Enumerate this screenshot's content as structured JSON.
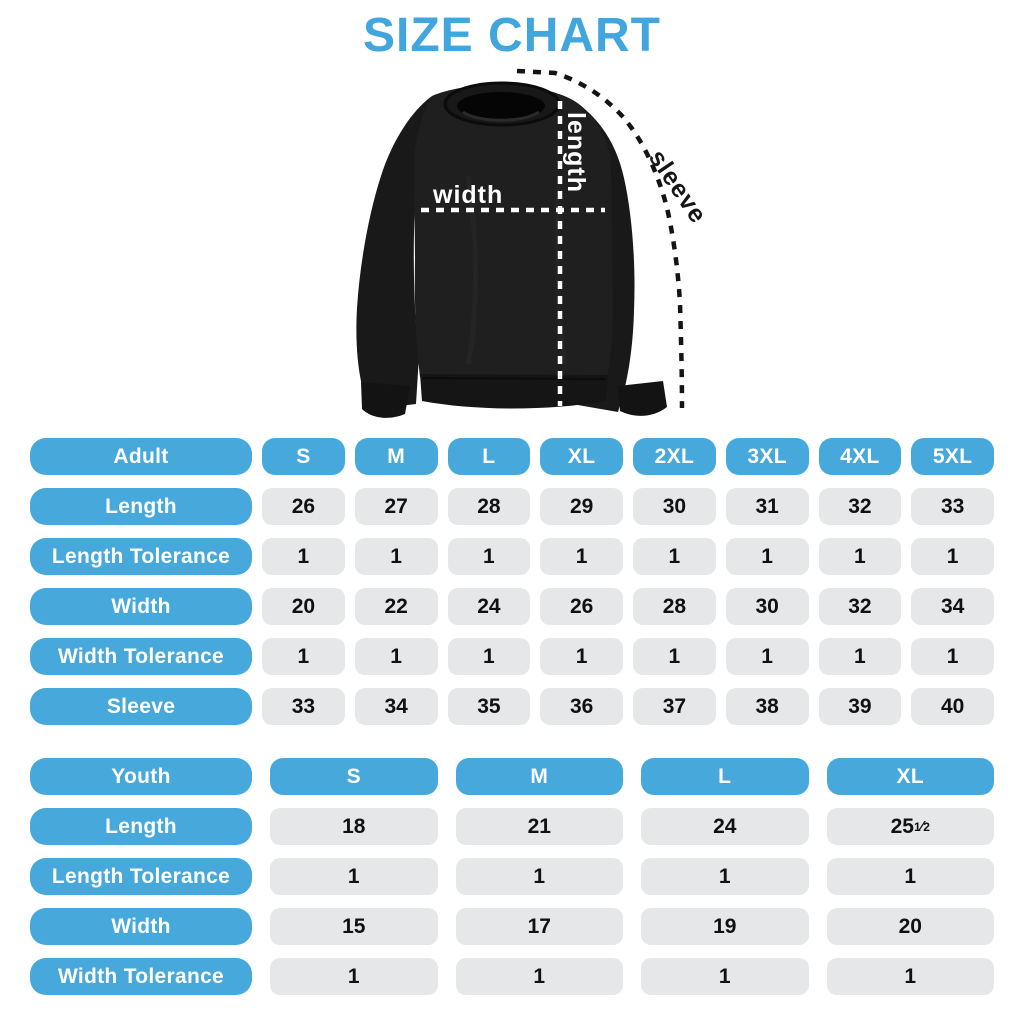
{
  "title": "SIZE CHART",
  "colors": {
    "title_blue": "#41A6DE",
    "pill_blue": "#47A8DC",
    "pill_gray": "#E6E7E8",
    "value_text": "#111111",
    "shirt_black": "#1E1E1E",
    "background": "#FFFFFF"
  },
  "diagram": {
    "labels": {
      "width": "width",
      "length": "length",
      "sleeve": "sleeve"
    }
  },
  "chart_data": [
    {
      "type": "table",
      "title": "Adult",
      "columns": [
        "S",
        "M",
        "L",
        "XL",
        "2XL",
        "3XL",
        "4XL",
        "5XL"
      ],
      "rows": [
        {
          "label": "Length",
          "values": [
            "26",
            "27",
            "28",
            "29",
            "30",
            "31",
            "32",
            "33"
          ]
        },
        {
          "label": "Length Tolerance",
          "values": [
            "1",
            "1",
            "1",
            "1",
            "1",
            "1",
            "1",
            "1"
          ]
        },
        {
          "label": "Width",
          "values": [
            "20",
            "22",
            "24",
            "26",
            "28",
            "30",
            "32",
            "34"
          ]
        },
        {
          "label": "Width Tolerance",
          "values": [
            "1",
            "1",
            "1",
            "1",
            "1",
            "1",
            "1",
            "1"
          ]
        },
        {
          "label": "Sleeve",
          "values": [
            "33",
            "34",
            "35",
            "36",
            "37",
            "38",
            "39",
            "40"
          ]
        }
      ]
    },
    {
      "type": "table",
      "title": "Youth",
      "columns": [
        "S",
        "M",
        "L",
        "XL"
      ],
      "rows": [
        {
          "label": "Length",
          "values": [
            "18",
            "21",
            "24",
            "25½"
          ]
        },
        {
          "label": "Length Tolerance",
          "values": [
            "1",
            "1",
            "1",
            "1"
          ]
        },
        {
          "label": "Width",
          "values": [
            "15",
            "17",
            "19",
            "20"
          ]
        },
        {
          "label": "Width Tolerance",
          "values": [
            "1",
            "1",
            "1",
            "1"
          ]
        }
      ]
    }
  ]
}
